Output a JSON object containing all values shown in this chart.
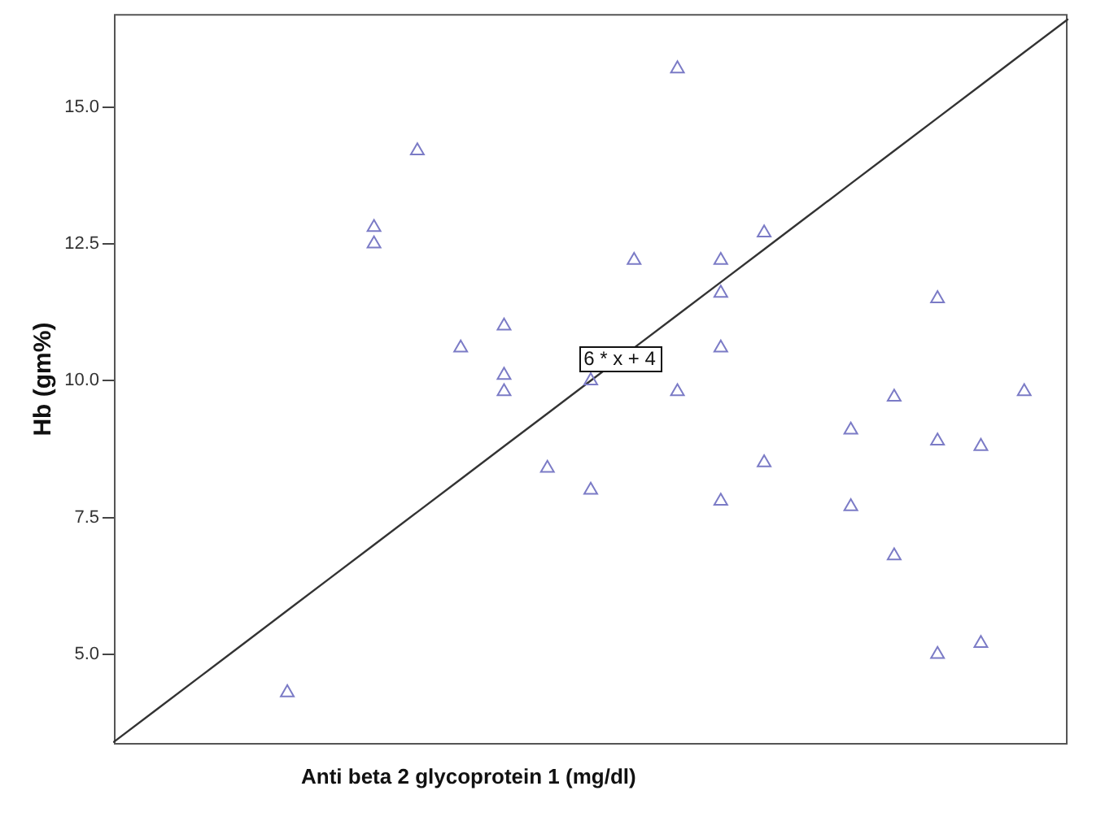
{
  "chart_data": {
    "type": "scatter",
    "xlabel": "Anti beta 2 glycoprotein 1 (mg/dl)",
    "ylabel": "Hb (gm%)",
    "categories": [
      null,
      null,
      null,
      null,
      null,
      null,
      null,
      null,
      null,
      null,
      null,
      null,
      null,
      null,
      null,
      null,
      null,
      null,
      null,
      null,
      null,
      null,
      null
    ],
    "ylim": [
      3.35,
      16.7
    ],
    "yticks": [
      {
        "value": 5,
        "label": "5.0"
      },
      {
        "value": 7.5,
        "label": "7.5"
      },
      {
        "value": 10,
        "label": "10.0"
      },
      {
        "value": 12.5,
        "label": "12.5"
      },
      {
        "value": 15,
        "label": "15.0"
      }
    ],
    "grid": false,
    "legend": false,
    "marker": "triangle",
    "tick_labels": "y",
    "annotations": [
      {
        "text": "6 * x + 4",
        "y": 10.4
      }
    ],
    "series": [
      {
        "type": "line",
        "color": "#333333",
        "marker": "none",
        "values": [
          3.4,
          4.0,
          4.6,
          5.2,
          5.8,
          6.4,
          7.0,
          7.6,
          8.2,
          8.8,
          9.4,
          10.0,
          10.6,
          11.2,
          11.8,
          12.4,
          13.0,
          13.6,
          14.2,
          14.8,
          15.4,
          16.0,
          16.6
        ]
      },
      {
        "color": "#7b7bc6",
        "values": [
          null,
          null,
          null,
          null,
          4.3,
          null,
          12.8,
          14.2,
          10.6,
          11.0,
          8.4,
          10.0,
          12.2,
          15.7,
          12.2,
          12.7,
          null,
          9.1,
          9.7,
          11.5,
          8.8,
          9.8,
          null
        ]
      },
      {
        "color": "#7b7bc6",
        "values": [
          null,
          null,
          null,
          null,
          null,
          null,
          12.5,
          null,
          null,
          10.1,
          null,
          8.0,
          null,
          9.8,
          11.6,
          8.5,
          null,
          7.7,
          6.8,
          8.9,
          5.2,
          null,
          null
        ]
      },
      {
        "color": "#7b7bc6",
        "values": [
          null,
          null,
          null,
          null,
          null,
          null,
          null,
          null,
          null,
          9.8,
          null,
          null,
          null,
          null,
          10.6,
          null,
          null,
          null,
          null,
          5.0,
          null,
          null,
          null
        ]
      },
      {
        "color": "#7b7bc6",
        "values": [
          null,
          null,
          null,
          null,
          null,
          null,
          null,
          null,
          null,
          null,
          null,
          null,
          null,
          null,
          7.8,
          null,
          null,
          null,
          null,
          null,
          null,
          null,
          null
        ]
      }
    ]
  }
}
